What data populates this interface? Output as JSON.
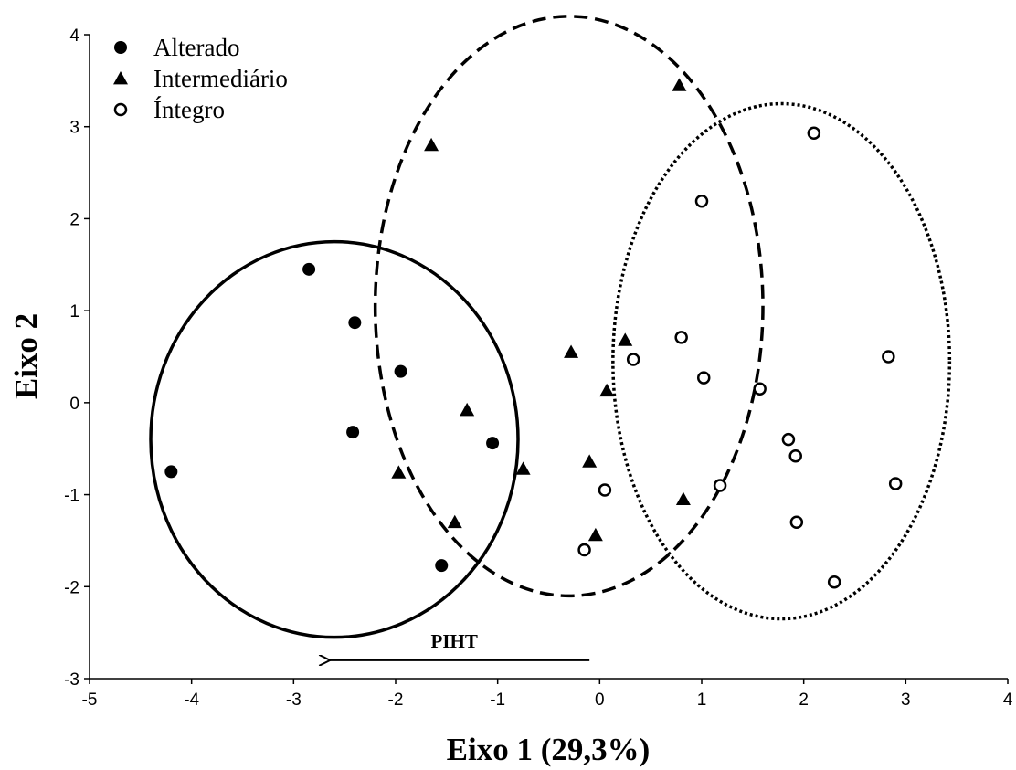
{
  "chart_data": {
    "type": "scatter",
    "xlabel": "Eixo 1 (29,3%)",
    "ylabel": "Eixo 2",
    "xlim": [
      -5,
      4
    ],
    "ylim": [
      -3,
      4
    ],
    "xticks": [
      "-5",
      "-4",
      "-3",
      "-2",
      "-1",
      "0",
      "1",
      "2",
      "3",
      "4"
    ],
    "yticks": [
      "-3",
      "-2",
      "-1",
      "0",
      "1",
      "2",
      "3",
      "4"
    ],
    "grid": false,
    "legend_position": "top-left",
    "series": [
      {
        "name": "Alterado",
        "marker": "filled-circle",
        "points": [
          [
            -4.2,
            -0.75
          ],
          [
            -2.85,
            1.45
          ],
          [
            -2.4,
            0.87
          ],
          [
            -2.42,
            -0.32
          ],
          [
            -1.95,
            0.34
          ],
          [
            -1.05,
            -0.44
          ],
          [
            -1.55,
            -1.77
          ]
        ]
      },
      {
        "name": "Intermediário",
        "marker": "filled-triangle",
        "points": [
          [
            -1.65,
            2.8
          ],
          [
            0.78,
            3.45
          ],
          [
            -0.28,
            0.55
          ],
          [
            0.25,
            0.68
          ],
          [
            0.07,
            0.13
          ],
          [
            -1.3,
            -0.08
          ],
          [
            -1.97,
            -0.76
          ],
          [
            -0.75,
            -0.72
          ],
          [
            -0.1,
            -0.64
          ],
          [
            0.82,
            -1.05
          ],
          [
            -1.42,
            -1.3
          ],
          [
            -0.04,
            -1.44
          ]
        ]
      },
      {
        "name": "Íntegro",
        "marker": "open-circle",
        "points": [
          [
            2.1,
            2.93
          ],
          [
            1.0,
            2.19
          ],
          [
            0.8,
            0.71
          ],
          [
            0.33,
            0.47
          ],
          [
            1.02,
            0.27
          ],
          [
            1.57,
            0.15
          ],
          [
            2.83,
            0.5
          ],
          [
            1.85,
            -0.4
          ],
          [
            1.92,
            -0.58
          ],
          [
            2.9,
            -0.88
          ],
          [
            1.18,
            -0.9
          ],
          [
            0.05,
            -0.95
          ],
          [
            1.93,
            -1.3
          ],
          [
            -0.15,
            -1.6
          ],
          [
            2.3,
            -1.95
          ]
        ]
      }
    ],
    "ellipses": [
      {
        "group": "Alterado",
        "style": "solid",
        "cx": -2.6,
        "cy": -0.4,
        "rx": 1.8,
        "ry": 2.15
      },
      {
        "group": "Intermediário",
        "style": "dashed",
        "cx": -0.3,
        "cy": 1.05,
        "rx": 1.9,
        "ry": 3.15
      },
      {
        "group": "Íntegro",
        "style": "dotted",
        "cx": 1.78,
        "cy": 0.45,
        "rx": 1.65,
        "ry": 2.8
      }
    ],
    "annotation": {
      "text": "PIHT",
      "arrow_from": [
        -0.1,
        -2.8
      ],
      "arrow_to": [
        -2.75,
        -2.8
      ]
    }
  }
}
